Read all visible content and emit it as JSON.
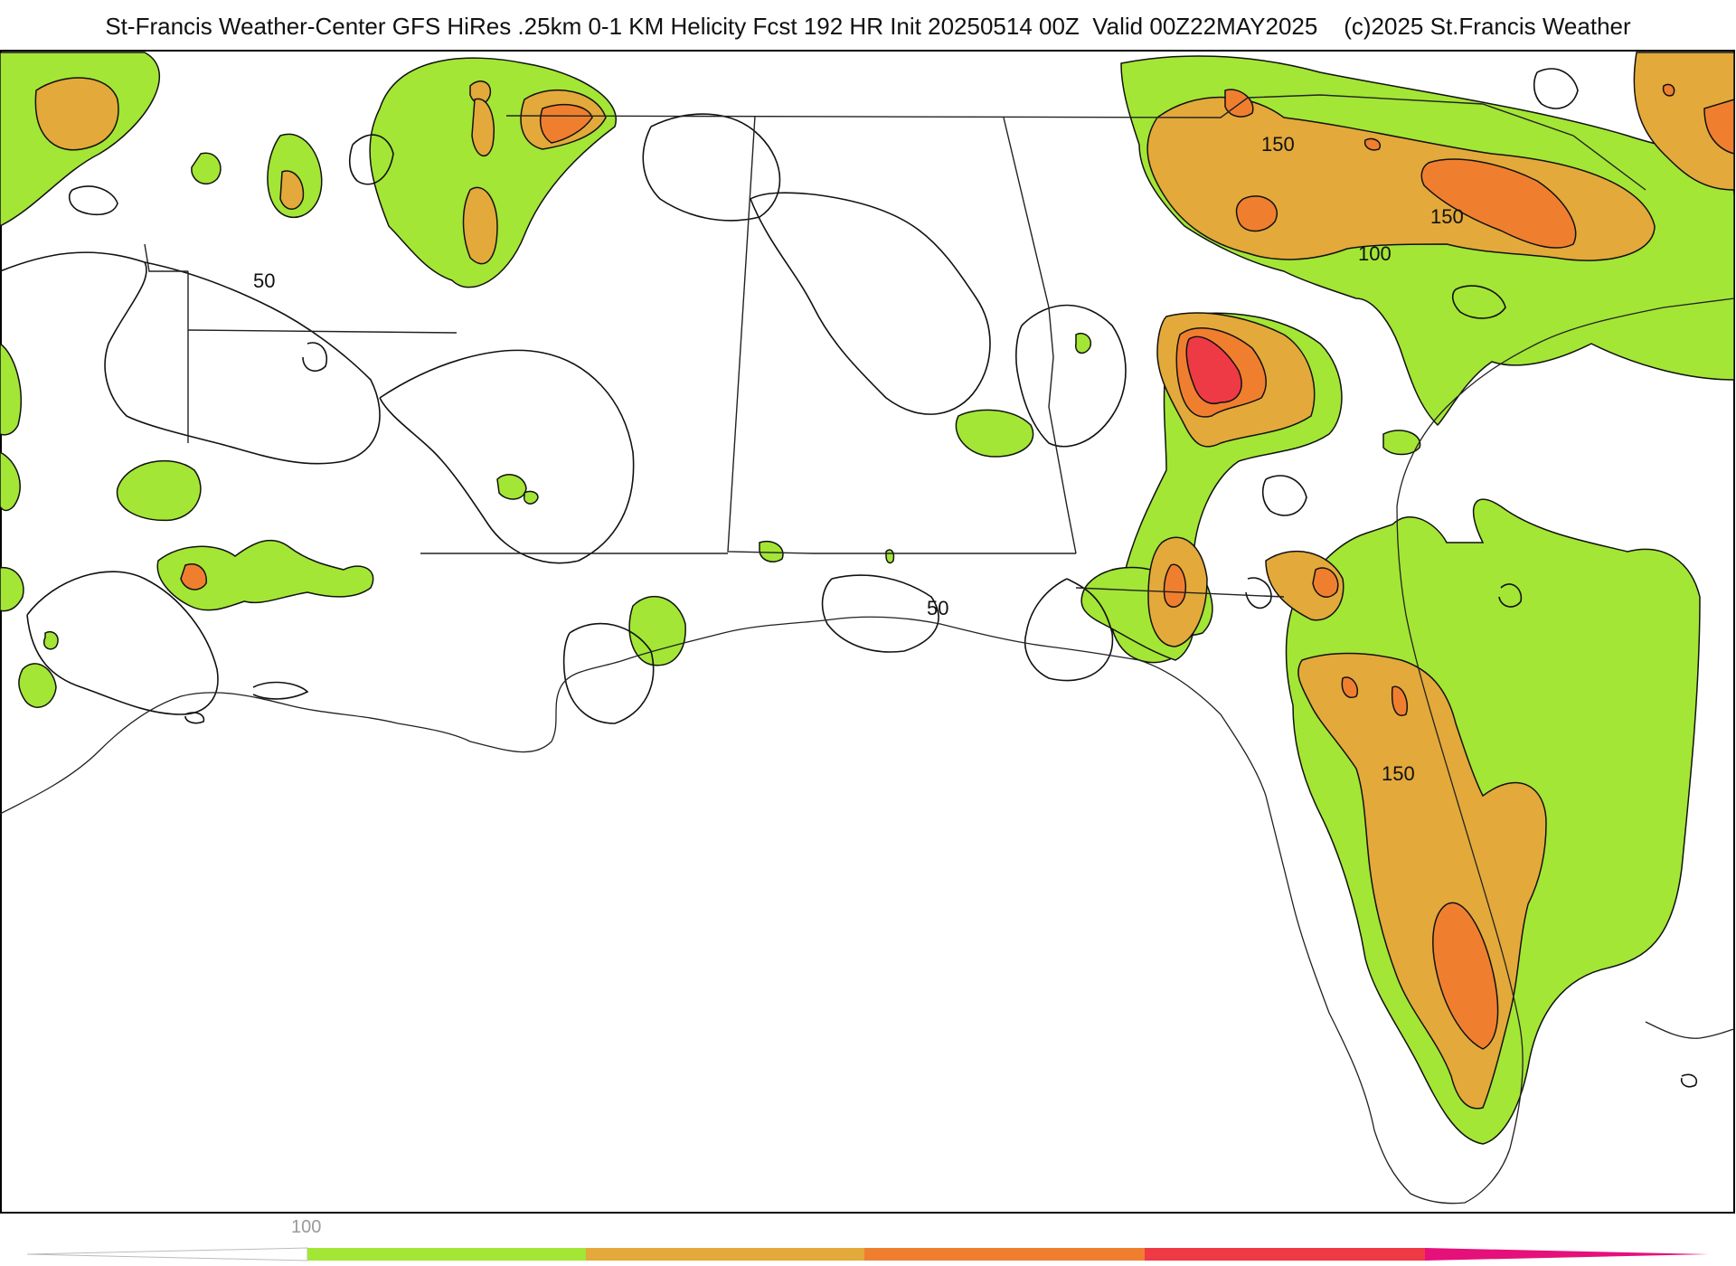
{
  "title": "St-Francis Weather-Center GFS HiRes .25km 0-1 KM Helicity Fcst 192 HR Init 20250514 00Z  Valid 00Z22MAY2025    (c)2025 St.Francis Weather",
  "colors": {
    "level_50_100": "#a3e635",
    "level_100_150": "#e3a93a",
    "level_150_200": "#ef7f2f",
    "level_200_250": "#ee3a44",
    "level_250_plus": "#e6107a",
    "contour": "#111111",
    "borders": "#222222",
    "counties": "#cfcfcf"
  },
  "contour_labels": [
    "50",
    "50",
    "150",
    "150",
    "100",
    "150"
  ],
  "colorbar": {
    "tick_label": "100",
    "segments": [
      "#c8c8c8",
      "#a3e635",
      "#e3a93a",
      "#ef7f2f",
      "#ee3a44",
      "#e6107a"
    ]
  }
}
